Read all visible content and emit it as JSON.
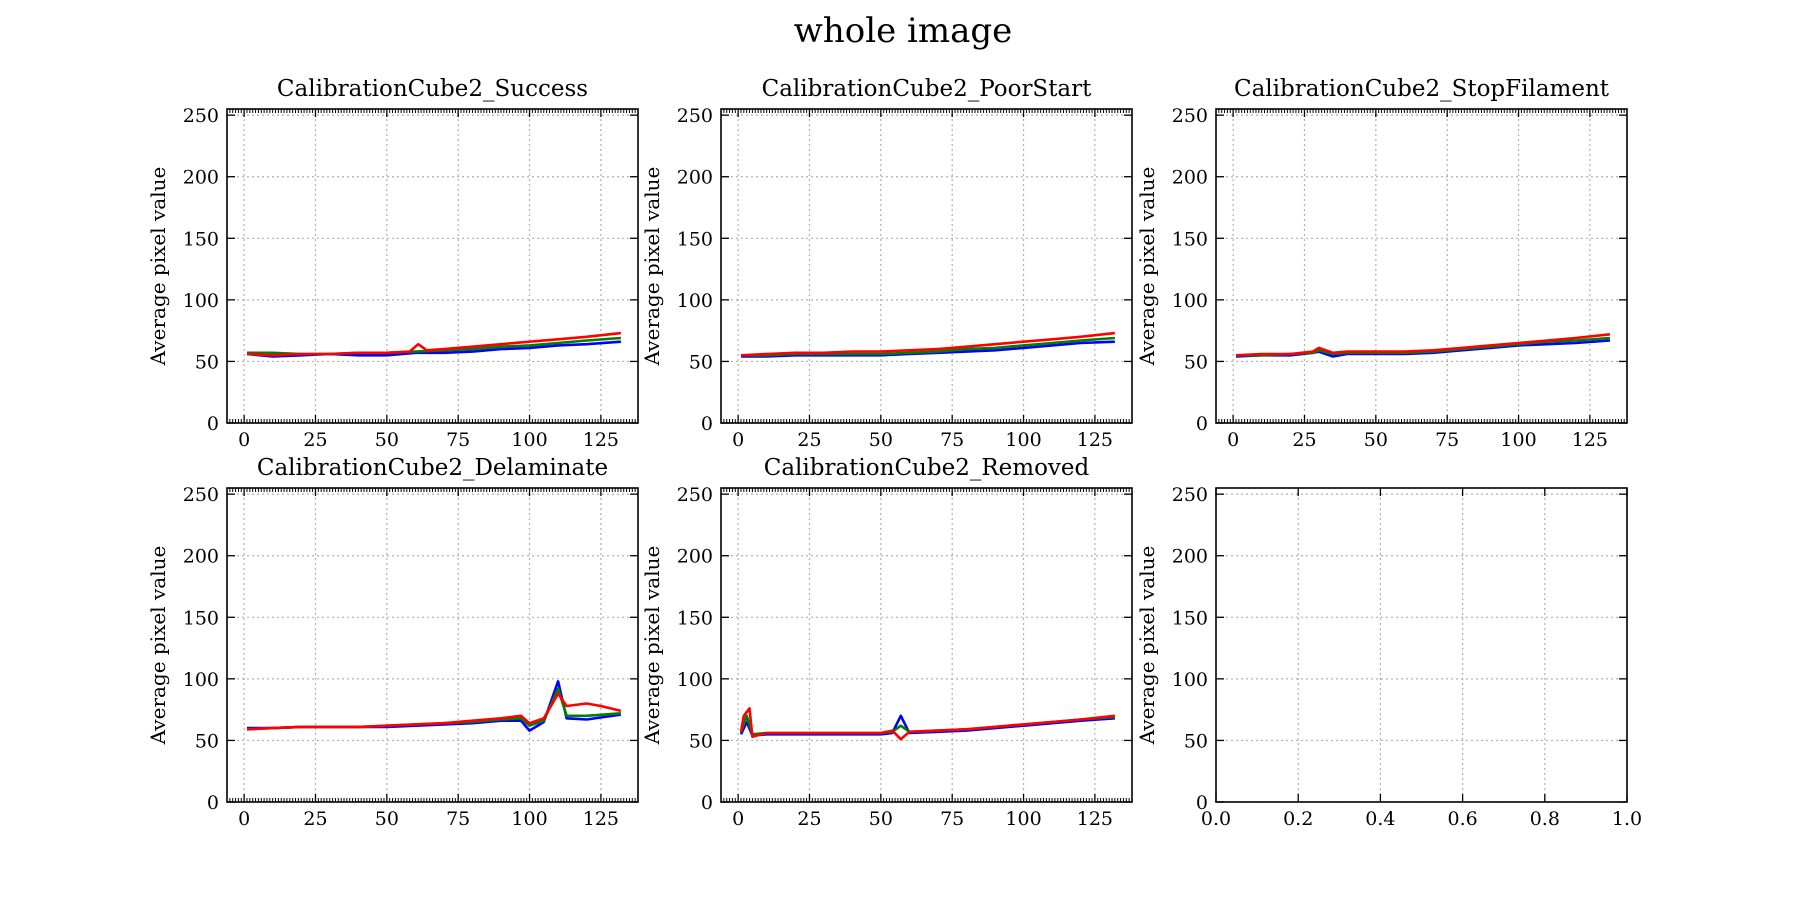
{
  "figure": {
    "title": "whole image"
  },
  "colors": {
    "blue": "#0000ff",
    "green": "#008000",
    "red": "#ff0000",
    "grid": "#b0b0b0",
    "axis": "#000000"
  },
  "chart_data": [
    {
      "type": "line",
      "title": "CalibrationCube2_Success",
      "ylabel": "Average pixel value",
      "xlim": [
        -6,
        138
      ],
      "ylim": [
        0,
        255
      ],
      "xticks": [
        "0",
        "25",
        "50",
        "75",
        "100",
        "125"
      ],
      "yticks": [
        "0",
        "50",
        "100",
        "150",
        "200",
        "250"
      ],
      "grid": true,
      "series": [
        {
          "color": "blue",
          "x": [
            1,
            10,
            20,
            30,
            40,
            50,
            60,
            70,
            80,
            90,
            100,
            110,
            120,
            132
          ],
          "y": [
            56,
            54,
            55,
            56,
            55,
            55,
            57,
            57,
            58,
            60,
            61,
            63,
            64,
            66
          ]
        },
        {
          "color": "green",
          "x": [
            1,
            10,
            20,
            30,
            40,
            50,
            60,
            70,
            80,
            90,
            100,
            110,
            120,
            132
          ],
          "y": [
            57,
            57,
            56,
            56,
            57,
            57,
            58,
            59,
            60,
            62,
            63,
            65,
            67,
            69
          ]
        },
        {
          "color": "red",
          "x": [
            1,
            10,
            20,
            30,
            40,
            50,
            58,
            61,
            64,
            70,
            80,
            90,
            100,
            110,
            120,
            132
          ],
          "y": [
            56,
            55,
            56,
            56,
            57,
            57,
            58,
            64,
            59,
            60,
            62,
            64,
            66,
            68,
            70,
            73
          ]
        }
      ]
    },
    {
      "type": "line",
      "title": "CalibrationCube2_PoorStart",
      "ylabel": "Average pixel value",
      "xlim": [
        -6,
        138
      ],
      "ylim": [
        0,
        255
      ],
      "xticks": [
        "0",
        "25",
        "50",
        "75",
        "100",
        "125"
      ],
      "yticks": [
        "0",
        "50",
        "100",
        "150",
        "200",
        "250"
      ],
      "grid": true,
      "series": [
        {
          "color": "blue",
          "x": [
            1,
            10,
            20,
            30,
            40,
            50,
            60,
            70,
            80,
            90,
            100,
            110,
            120,
            132
          ],
          "y": [
            54,
            54,
            55,
            55,
            55,
            55,
            56,
            57,
            58,
            59,
            61,
            63,
            65,
            66
          ]
        },
        {
          "color": "green",
          "x": [
            1,
            10,
            20,
            30,
            40,
            50,
            60,
            70,
            80,
            90,
            100,
            110,
            120,
            132
          ],
          "y": [
            55,
            55,
            56,
            56,
            56,
            56,
            57,
            58,
            60,
            61,
            63,
            65,
            67,
            69
          ]
        },
        {
          "color": "red",
          "x": [
            1,
            10,
            20,
            30,
            40,
            50,
            60,
            70,
            80,
            90,
            100,
            110,
            120,
            132
          ],
          "y": [
            55,
            56,
            57,
            57,
            58,
            58,
            59,
            60,
            62,
            64,
            66,
            68,
            70,
            73
          ]
        }
      ]
    },
    {
      "type": "line",
      "title": "CalibrationCube2_StopFilament",
      "ylabel": "Average pixel value",
      "xlim": [
        -6,
        138
      ],
      "ylim": [
        0,
        255
      ],
      "xticks": [
        "0",
        "25",
        "50",
        "75",
        "100",
        "125"
      ],
      "yticks": [
        "0",
        "50",
        "100",
        "150",
        "200",
        "250"
      ],
      "grid": true,
      "series": [
        {
          "color": "blue",
          "x": [
            1,
            10,
            20,
            28,
            30,
            35,
            40,
            50,
            60,
            70,
            80,
            90,
            100,
            110,
            120,
            132
          ],
          "y": [
            54,
            55,
            55,
            57,
            58,
            54,
            56,
            56,
            56,
            57,
            59,
            61,
            63,
            64,
            65,
            67
          ]
        },
        {
          "color": "green",
          "x": [
            1,
            10,
            20,
            28,
            30,
            35,
            40,
            50,
            60,
            70,
            80,
            90,
            100,
            110,
            120,
            132
          ],
          "y": [
            55,
            55,
            56,
            57,
            59,
            56,
            57,
            57,
            57,
            58,
            60,
            62,
            64,
            66,
            67,
            69
          ]
        },
        {
          "color": "red",
          "x": [
            1,
            10,
            20,
            28,
            30,
            35,
            40,
            50,
            60,
            70,
            80,
            90,
            100,
            110,
            120,
            132
          ],
          "y": [
            55,
            56,
            56,
            58,
            61,
            57,
            58,
            58,
            58,
            59,
            61,
            63,
            65,
            67,
            69,
            72
          ]
        }
      ]
    },
    {
      "type": "line",
      "title": "CalibrationCube2_Delaminate",
      "ylabel": "Average pixel value",
      "xlim": [
        -6,
        138
      ],
      "ylim": [
        0,
        255
      ],
      "xticks": [
        "0",
        "25",
        "50",
        "75",
        "100",
        "125"
      ],
      "yticks": [
        "0",
        "50",
        "100",
        "150",
        "200",
        "250"
      ],
      "grid": true,
      "series": [
        {
          "color": "blue",
          "x": [
            1,
            10,
            20,
            30,
            40,
            50,
            60,
            70,
            80,
            90,
            97,
            100,
            105,
            110,
            113,
            120,
            132
          ],
          "y": [
            60,
            60,
            61,
            61,
            61,
            61,
            62,
            63,
            64,
            66,
            66,
            58,
            65,
            98,
            68,
            67,
            71
          ]
        },
        {
          "color": "green",
          "x": [
            1,
            10,
            20,
            30,
            40,
            50,
            60,
            70,
            80,
            90,
            97,
            100,
            105,
            110,
            113,
            120,
            132
          ],
          "y": [
            59,
            60,
            61,
            61,
            61,
            62,
            63,
            64,
            65,
            67,
            68,
            62,
            66,
            92,
            70,
            70,
            72
          ]
        },
        {
          "color": "red",
          "x": [
            1,
            10,
            20,
            30,
            40,
            50,
            60,
            70,
            80,
            90,
            97,
            100,
            105,
            110,
            113,
            120,
            125,
            132
          ],
          "y": [
            59,
            60,
            61,
            61,
            61,
            62,
            63,
            64,
            66,
            68,
            70,
            64,
            68,
            88,
            78,
            80,
            78,
            74
          ]
        }
      ]
    },
    {
      "type": "line",
      "title": "CalibrationCube2_Removed",
      "ylabel": "Average pixel value",
      "xlim": [
        -6,
        138
      ],
      "ylim": [
        0,
        255
      ],
      "xticks": [
        "0",
        "25",
        "50",
        "75",
        "100",
        "125"
      ],
      "yticks": [
        "0",
        "50",
        "100",
        "150",
        "200",
        "250"
      ],
      "grid": true,
      "series": [
        {
          "color": "blue",
          "x": [
            1,
            3,
            5,
            10,
            20,
            30,
            40,
            50,
            54,
            57,
            60,
            70,
            80,
            90,
            100,
            110,
            120,
            132
          ],
          "y": [
            55,
            65,
            54,
            55,
            55,
            55,
            55,
            55,
            56,
            70,
            56,
            57,
            58,
            60,
            62,
            64,
            66,
            68
          ]
        },
        {
          "color": "green",
          "x": [
            1,
            3,
            5,
            10,
            20,
            30,
            40,
            50,
            54,
            57,
            60,
            70,
            80,
            90,
            100,
            110,
            120,
            132
          ],
          "y": [
            57,
            70,
            55,
            56,
            56,
            56,
            56,
            56,
            57,
            62,
            57,
            58,
            59,
            61,
            63,
            65,
            67,
            69
          ]
        },
        {
          "color": "red",
          "x": [
            1,
            2,
            4,
            5,
            10,
            20,
            30,
            40,
            50,
            54,
            57,
            60,
            70,
            80,
            90,
            100,
            110,
            120,
            132
          ],
          "y": [
            57,
            70,
            76,
            53,
            56,
            56,
            56,
            56,
            56,
            58,
            51,
            57,
            58,
            59,
            61,
            63,
            65,
            67,
            70
          ]
        }
      ]
    },
    {
      "type": "line",
      "title": "",
      "ylabel": "Average pixel value",
      "xlim": [
        0,
        1
      ],
      "ylim": [
        0,
        255
      ],
      "xticks": [
        "0.0",
        "0.2",
        "0.4",
        "0.6",
        "0.8",
        "1.0"
      ],
      "yticks": [
        "0",
        "50",
        "100",
        "150",
        "200",
        "250"
      ],
      "grid": true,
      "series": []
    }
  ]
}
